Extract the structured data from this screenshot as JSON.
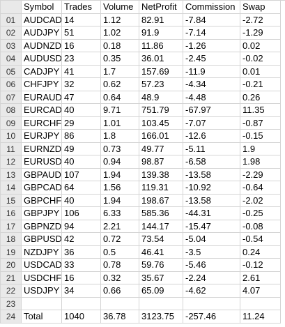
{
  "headers": [
    "",
    "Symbol",
    "Trades",
    "Volume",
    "NetProfit",
    "Commission",
    "Swap"
  ],
  "rows": [
    [
      "01",
      "AUDCAD",
      "14",
      "1.12",
      "82.91",
      "-7.84",
      "-2.72"
    ],
    [
      "02",
      "AUDJPY",
      "51",
      "1.02",
      "91.9",
      "-7.14",
      "-1.29"
    ],
    [
      "03",
      "AUDNZD",
      "16",
      "0.18",
      "11.86",
      "-1.26",
      "0.02"
    ],
    [
      "04",
      "AUDUSD",
      "23",
      "0.35",
      "36.01",
      "-2.45",
      "-0.02"
    ],
    [
      "05",
      "CADJPY",
      "41",
      "1.7",
      "157.69",
      "-11.9",
      "0.01"
    ],
    [
      "06",
      "CHFJPY",
      "32",
      "0.62",
      "57.23",
      "-4.34",
      "-0.21"
    ],
    [
      "07",
      "EURAUD",
      "47",
      "0.64",
      "48.9",
      "-4.48",
      "0.26"
    ],
    [
      "08",
      "EURCAD",
      "40",
      "9.71",
      "751.79",
      "-67.97",
      "11.35"
    ],
    [
      "09",
      "EURCHF",
      "29",
      "1.01",
      "103.45",
      "-7.07",
      "-0.87"
    ],
    [
      "10",
      "EURJPY",
      "86",
      "1.8",
      "166.01",
      "-12.6",
      "-0.15"
    ],
    [
      "11",
      "EURNZD",
      "49",
      "0.73",
      "49.77",
      "-5.11",
      "1.9"
    ],
    [
      "12",
      "EURUSD",
      "40",
      "0.94",
      "98.87",
      "-6.58",
      "1.98"
    ],
    [
      "13",
      "GBPAUD",
      "107",
      "1.94",
      "139.38",
      "-13.58",
      "-2.29"
    ],
    [
      "14",
      "GBPCAD",
      "64",
      "1.56",
      "119.31",
      "-10.92",
      "-0.64"
    ],
    [
      "15",
      "GBPCHF",
      "40",
      "1.94",
      "198.67",
      "-13.58",
      "-2.02"
    ],
    [
      "16",
      "GBPJPY",
      "106",
      "6.33",
      "585.36",
      "-44.31",
      "-0.25"
    ],
    [
      "17",
      "GBPNZD",
      "94",
      "2.21",
      "144.17",
      "-15.47",
      "-0.08"
    ],
    [
      "18",
      "GBPUSD",
      "42",
      "0.72",
      "73.54",
      "-5.04",
      "-0.54"
    ],
    [
      "19",
      "NZDJPY",
      "36",
      "0.5",
      "46.41",
      "-3.5",
      "0.24"
    ],
    [
      "20",
      "USDCAD",
      "33",
      "0.78",
      "59.76",
      "-5.46",
      "-0.12"
    ],
    [
      "21",
      "USDCHF",
      "16",
      "0.32",
      "35.67",
      "-2.24",
      "2.61"
    ],
    [
      "22",
      "USDJPY",
      "34",
      "0.66",
      "65.09",
      "-4.62",
      "4.07"
    ],
    [
      "23",
      "",
      "",
      "",
      "",
      "",
      ""
    ],
    [
      "24",
      "Total",
      "1040",
      "36.78",
      "3123.75",
      "-257.46",
      "11.24"
    ]
  ]
}
